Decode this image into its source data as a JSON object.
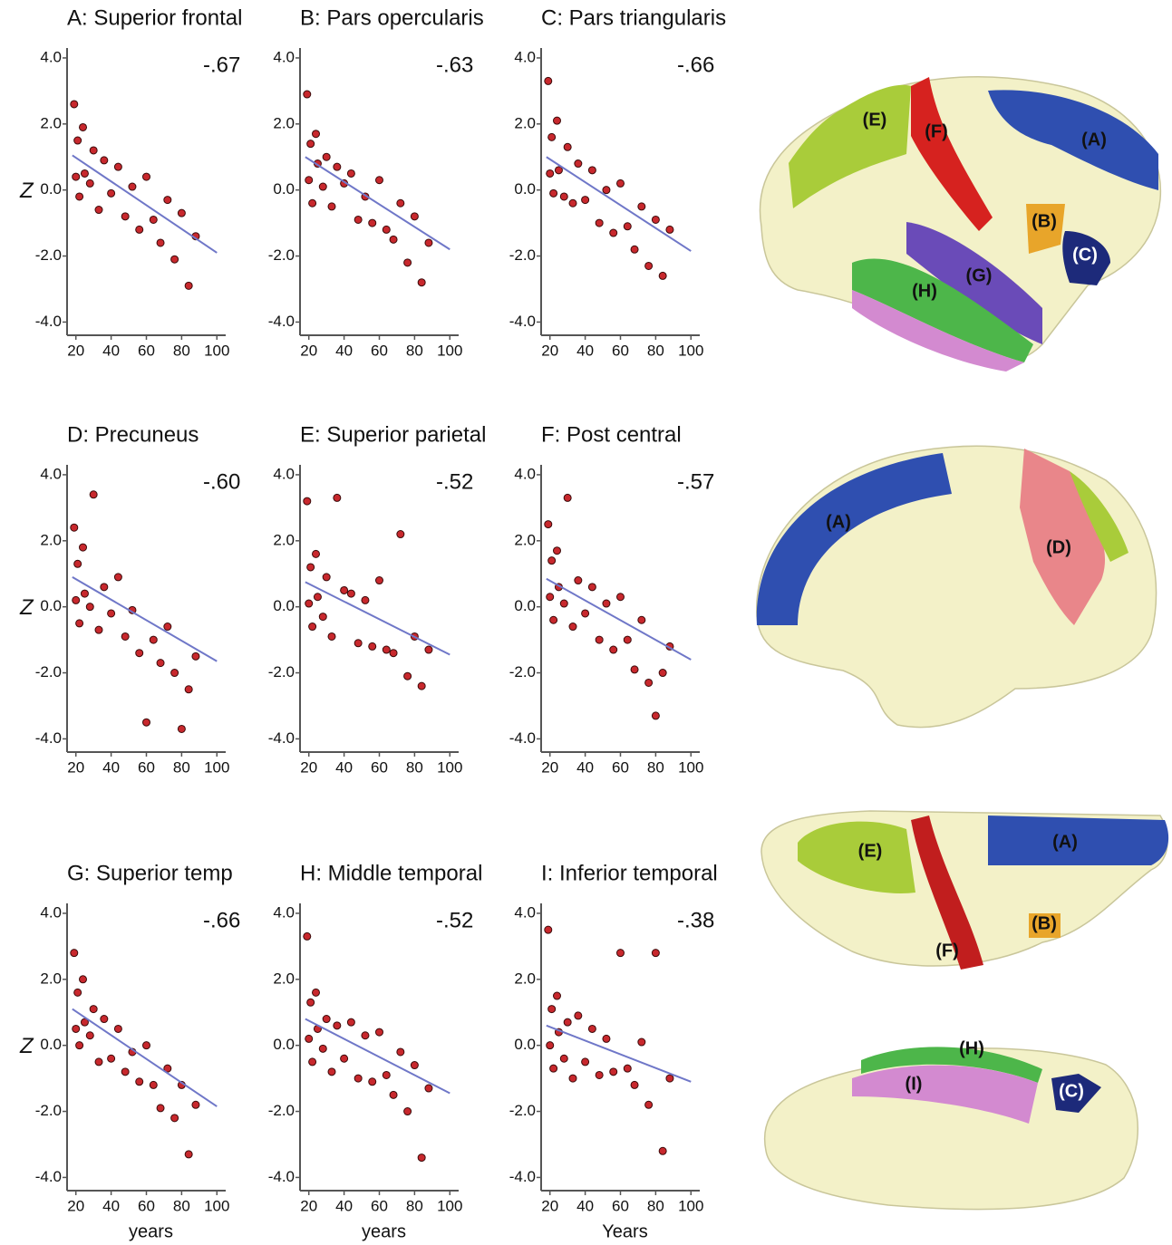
{
  "chart_data": [
    {
      "type": "scatter",
      "title": "A: Superior frontal",
      "annotation": "-.67",
      "ylabel": "Z",
      "color": "#c8282d",
      "fit_color": "#6f77c8",
      "x": [
        19,
        20,
        21,
        22,
        24,
        25,
        28,
        30,
        33,
        36,
        40,
        44,
        48,
        52,
        56,
        60,
        64,
        68,
        72,
        76,
        80,
        84,
        88
      ],
      "y": [
        2.6,
        0.4,
        1.5,
        -0.2,
        1.9,
        0.5,
        0.2,
        1.2,
        -0.6,
        0.9,
        -0.1,
        0.7,
        -0.8,
        0.1,
        -1.2,
        0.4,
        -0.9,
        -1.6,
        -0.3,
        -2.1,
        -0.7,
        -2.9,
        -1.4
      ],
      "fit": {
        "x": [
          18,
          100
        ],
        "y": [
          1.05,
          -1.9
        ]
      },
      "xlim": [
        15,
        105
      ],
      "ylim": [
        -4.4,
        4.3
      ],
      "xticks": [
        20,
        40,
        60,
        80,
        100
      ],
      "yticks": [
        {
          "value": 4,
          "label": "4.0"
        },
        {
          "value": 2,
          "label": "2.0"
        },
        {
          "value": 0,
          "label": "0.0"
        },
        {
          "value": -2,
          "label": "-2.0"
        },
        {
          "value": -4,
          "label": "-4.0"
        }
      ]
    },
    {
      "type": "scatter",
      "title": "B: Pars opercularis",
      "annotation": "-.63",
      "color": "#c8282d",
      "fit_color": "#6f77c8",
      "x": [
        19,
        20,
        21,
        22,
        24,
        25,
        28,
        30,
        33,
        36,
        40,
        44,
        48,
        52,
        56,
        60,
        64,
        68,
        72,
        76,
        80,
        84,
        88
      ],
      "y": [
        2.9,
        0.3,
        1.4,
        -0.4,
        1.7,
        0.8,
        0.1,
        1.0,
        -0.5,
        0.7,
        0.2,
        0.5,
        -0.9,
        -0.2,
        -1.0,
        0.3,
        -1.2,
        -1.5,
        -0.4,
        -2.2,
        -0.8,
        -2.8,
        -1.6
      ],
      "fit": {
        "x": [
          18,
          100
        ],
        "y": [
          1.0,
          -1.8
        ]
      },
      "xlim": [
        15,
        105
      ],
      "ylim": [
        -4.4,
        4.3
      ],
      "xticks": [
        20,
        40,
        60,
        80,
        100
      ],
      "yticks": [
        {
          "value": 4,
          "label": "4.0"
        },
        {
          "value": 2,
          "label": "2.0"
        },
        {
          "value": 0,
          "label": "0.0"
        },
        {
          "value": -2,
          "label": "-2.0"
        },
        {
          "value": -4,
          "label": "-4.0"
        }
      ]
    },
    {
      "type": "scatter",
      "title": "C: Pars triangularis",
      "annotation": "-.66",
      "color": "#c8282d",
      "fit_color": "#6f77c8",
      "x": [
        19,
        20,
        21,
        22,
        24,
        25,
        28,
        30,
        33,
        36,
        40,
        44,
        48,
        52,
        56,
        60,
        64,
        68,
        72,
        76,
        80,
        84,
        88
      ],
      "y": [
        3.3,
        0.5,
        1.6,
        -0.1,
        2.1,
        0.6,
        -0.2,
        1.3,
        -0.4,
        0.8,
        -0.3,
        0.6,
        -1.0,
        0.0,
        -1.3,
        0.2,
        -1.1,
        -1.8,
        -0.5,
        -2.3,
        -0.9,
        -2.6,
        -1.2
      ],
      "fit": {
        "x": [
          18,
          100
        ],
        "y": [
          1.0,
          -1.85
        ]
      },
      "xlim": [
        15,
        105
      ],
      "ylim": [
        -4.4,
        4.3
      ],
      "xticks": [
        20,
        40,
        60,
        80,
        100
      ],
      "yticks": [
        {
          "value": 4,
          "label": "4.0"
        },
        {
          "value": 2,
          "label": "2.0"
        },
        {
          "value": 0,
          "label": "0.0"
        },
        {
          "value": -2,
          "label": "-2.0"
        },
        {
          "value": -4,
          "label": "-4.0"
        }
      ]
    },
    {
      "type": "scatter",
      "title": "D: Precuneus",
      "annotation": "-.60",
      "ylabel": "Z",
      "color": "#c8282d",
      "fit_color": "#6f77c8",
      "x": [
        19,
        20,
        21,
        22,
        24,
        25,
        28,
        30,
        33,
        36,
        40,
        44,
        48,
        52,
        56,
        60,
        64,
        68,
        72,
        76,
        80,
        84,
        88
      ],
      "y": [
        2.4,
        0.2,
        1.3,
        -0.5,
        1.8,
        0.4,
        0.0,
        3.4,
        -0.7,
        0.6,
        -0.2,
        0.9,
        -0.9,
        -0.1,
        -1.4,
        -3.5,
        -1.0,
        -1.7,
        -0.6,
        -2.0,
        -3.7,
        -2.5,
        -1.5
      ],
      "fit": {
        "x": [
          18,
          100
        ],
        "y": [
          0.9,
          -1.65
        ]
      },
      "xlim": [
        15,
        105
      ],
      "ylim": [
        -4.4,
        4.3
      ],
      "xticks": [
        20,
        40,
        60,
        80,
        100
      ],
      "yticks": [
        {
          "value": 4,
          "label": "4.0"
        },
        {
          "value": 2,
          "label": "2.0"
        },
        {
          "value": 0,
          "label": "0.0"
        },
        {
          "value": -2,
          "label": "-2.0"
        },
        {
          "value": -4,
          "label": "-4.0"
        }
      ]
    },
    {
      "type": "scatter",
      "title": "E: Superior parietal",
      "annotation": "-.52",
      "color": "#c8282d",
      "fit_color": "#6f77c8",
      "x": [
        19,
        20,
        21,
        22,
        24,
        25,
        28,
        30,
        33,
        36,
        40,
        44,
        48,
        52,
        56,
        60,
        64,
        68,
        72,
        76,
        80,
        84,
        88
      ],
      "y": [
        3.2,
        0.1,
        1.2,
        -0.6,
        1.6,
        0.3,
        -0.3,
        0.9,
        -0.9,
        3.3,
        0.5,
        0.4,
        -1.1,
        0.2,
        -1.2,
        0.8,
        -1.3,
        -1.4,
        2.2,
        -2.1,
        -0.9,
        -2.4,
        -1.3
      ],
      "fit": {
        "x": [
          18,
          100
        ],
        "y": [
          0.75,
          -1.45
        ]
      },
      "xlim": [
        15,
        105
      ],
      "ylim": [
        -4.4,
        4.3
      ],
      "xticks": [
        20,
        40,
        60,
        80,
        100
      ],
      "yticks": [
        {
          "value": 4,
          "label": "4.0"
        },
        {
          "value": 2,
          "label": "2.0"
        },
        {
          "value": 0,
          "label": "0.0"
        },
        {
          "value": -2,
          "label": "-2.0"
        },
        {
          "value": -4,
          "label": "-4.0"
        }
      ]
    },
    {
      "type": "scatter",
      "title": "F: Post central",
      "annotation": "-.57",
      "color": "#c8282d",
      "fit_color": "#6f77c8",
      "x": [
        19,
        20,
        21,
        22,
        24,
        25,
        28,
        30,
        33,
        36,
        40,
        44,
        48,
        52,
        56,
        60,
        64,
        68,
        72,
        76,
        80,
        84,
        88
      ],
      "y": [
        2.5,
        0.3,
        1.4,
        -0.4,
        1.7,
        0.6,
        0.1,
        3.3,
        -0.6,
        0.8,
        -0.2,
        0.6,
        -1.0,
        0.1,
        -1.3,
        0.3,
        -1.0,
        -1.9,
        -0.4,
        -2.3,
        -3.3,
        -2.0,
        -1.2
      ],
      "fit": {
        "x": [
          18,
          100
        ],
        "y": [
          0.85,
          -1.6
        ]
      },
      "xlim": [
        15,
        105
      ],
      "ylim": [
        -4.4,
        4.3
      ],
      "xticks": [
        20,
        40,
        60,
        80,
        100
      ],
      "yticks": [
        {
          "value": 4,
          "label": "4.0"
        },
        {
          "value": 2,
          "label": "2.0"
        },
        {
          "value": 0,
          "label": "0.0"
        },
        {
          "value": -2,
          "label": "-2.0"
        },
        {
          "value": -4,
          "label": "-4.0"
        }
      ]
    },
    {
      "type": "scatter",
      "title": "G: Superior temp",
      "annotation": "-.66",
      "ylabel": "Z",
      "xlabel": "years",
      "color": "#c8282d",
      "fit_color": "#6f77c8",
      "x": [
        19,
        20,
        21,
        22,
        24,
        25,
        28,
        30,
        33,
        36,
        40,
        44,
        48,
        52,
        56,
        60,
        64,
        68,
        72,
        76,
        80,
        84,
        88
      ],
      "y": [
        2.8,
        0.5,
        1.6,
        0.0,
        2.0,
        0.7,
        0.3,
        1.1,
        -0.5,
        0.8,
        -0.4,
        0.5,
        -0.8,
        -0.2,
        -1.1,
        0.0,
        -1.2,
        -1.9,
        -0.7,
        -2.2,
        -1.2,
        -3.3,
        -1.8
      ],
      "fit": {
        "x": [
          18,
          100
        ],
        "y": [
          1.1,
          -1.85
        ]
      },
      "xlim": [
        15,
        105
      ],
      "ylim": [
        -4.4,
        4.3
      ],
      "xticks": [
        20,
        40,
        60,
        80,
        100
      ],
      "yticks": [
        {
          "value": 4,
          "label": "4.0"
        },
        {
          "value": 2,
          "label": "2.0"
        },
        {
          "value": 0,
          "label": "0.0"
        },
        {
          "value": -2,
          "label": "-2.0"
        },
        {
          "value": -4,
          "label": "-4.0"
        }
      ]
    },
    {
      "type": "scatter",
      "title": "H: Middle temporal",
      "annotation": "-.52",
      "xlabel": "years",
      "color": "#c8282d",
      "fit_color": "#6f77c8",
      "x": [
        19,
        20,
        21,
        22,
        24,
        25,
        28,
        30,
        33,
        36,
        40,
        44,
        48,
        52,
        56,
        60,
        64,
        68,
        72,
        76,
        80,
        84,
        88
      ],
      "y": [
        3.3,
        0.2,
        1.3,
        -0.5,
        1.6,
        0.5,
        -0.1,
        0.8,
        -0.8,
        0.6,
        -0.4,
        0.7,
        -1.0,
        0.3,
        -1.1,
        0.4,
        -0.9,
        -1.5,
        -0.2,
        -2.0,
        -0.6,
        -3.4,
        -1.3
      ],
      "fit": {
        "x": [
          18,
          100
        ],
        "y": [
          0.8,
          -1.45
        ]
      },
      "xlim": [
        15,
        105
      ],
      "ylim": [
        -4.4,
        4.3
      ],
      "xticks": [
        20,
        40,
        60,
        80,
        100
      ],
      "yticks": [
        {
          "value": 4,
          "label": "4.0"
        },
        {
          "value": 2,
          "label": "2.0"
        },
        {
          "value": 0,
          "label": "0.0"
        },
        {
          "value": -2,
          "label": "-2.0"
        },
        {
          "value": -4,
          "label": "-4.0"
        }
      ]
    },
    {
      "type": "scatter",
      "title": "I: Inferior temporal",
      "annotation": "-.38",
      "xlabel": "Years",
      "color": "#c8282d",
      "fit_color": "#6f77c8",
      "x": [
        19,
        20,
        21,
        22,
        24,
        25,
        28,
        30,
        33,
        36,
        40,
        44,
        48,
        52,
        56,
        60,
        64,
        68,
        72,
        76,
        80,
        84,
        88
      ],
      "y": [
        3.5,
        0.0,
        1.1,
        -0.7,
        1.5,
        0.4,
        -0.4,
        0.7,
        -1.0,
        0.9,
        -0.5,
        0.5,
        -0.9,
        0.2,
        -0.8,
        2.8,
        -0.7,
        -1.2,
        0.1,
        -1.8,
        2.8,
        -3.2,
        -1.0
      ],
      "fit": {
        "x": [
          18,
          100
        ],
        "y": [
          0.6,
          -1.1
        ]
      },
      "xlim": [
        15,
        105
      ],
      "ylim": [
        -4.4,
        4.3
      ],
      "xticks": [
        20,
        40,
        60,
        80,
        100
      ],
      "yticks": [
        {
          "value": 4,
          "label": "4.0"
        },
        {
          "value": 2,
          "label": "2.0"
        },
        {
          "value": 0,
          "label": "0.0"
        },
        {
          "value": -2,
          "label": "-2.0"
        },
        {
          "value": -4,
          "label": "-4.0"
        }
      ]
    }
  ],
  "brain_views": [
    {
      "labels": [
        "(E)",
        "(F)",
        "(A)",
        "(B)",
        "(C)",
        "(G)",
        "(H)"
      ]
    },
    {
      "labels": [
        "(A)",
        "(D)"
      ]
    },
    {
      "labels": [
        "(E)",
        "(A)",
        "(F)",
        "(B)"
      ]
    },
    {
      "labels": [
        "(H)",
        "(I)",
        "(C)"
      ]
    }
  ]
}
